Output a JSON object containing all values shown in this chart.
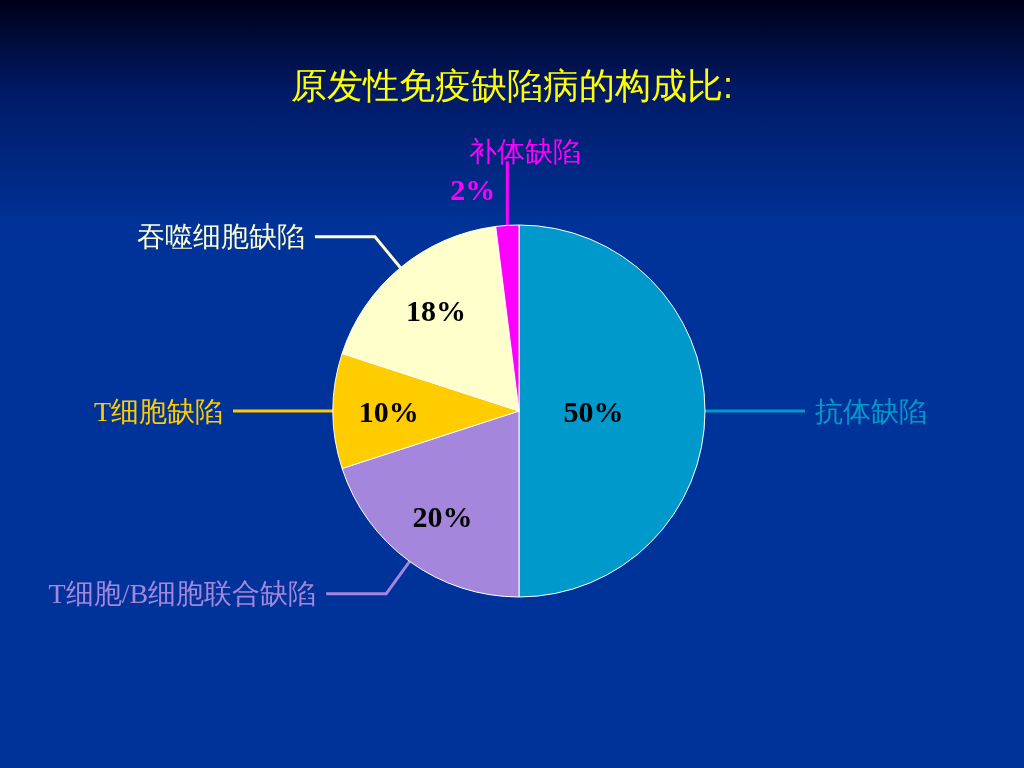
{
  "chart_data": {
    "type": "pie",
    "title": "原发性免疫缺陷病的构成比:",
    "categories": [
      "抗体缺陷",
      "T细胞/B细胞联合缺陷",
      "T细胞缺陷",
      "吞噬细胞缺陷",
      "补体缺陷"
    ],
    "values": [
      50,
      20,
      10,
      18,
      2
    ],
    "colors": [
      "#0099cc",
      "#a586dd",
      "#ffcc00",
      "#ffffcc",
      "#ff00ff"
    ],
    "value_labels": [
      "50%",
      "20%",
      "10%",
      "18%",
      "2%"
    ]
  }
}
